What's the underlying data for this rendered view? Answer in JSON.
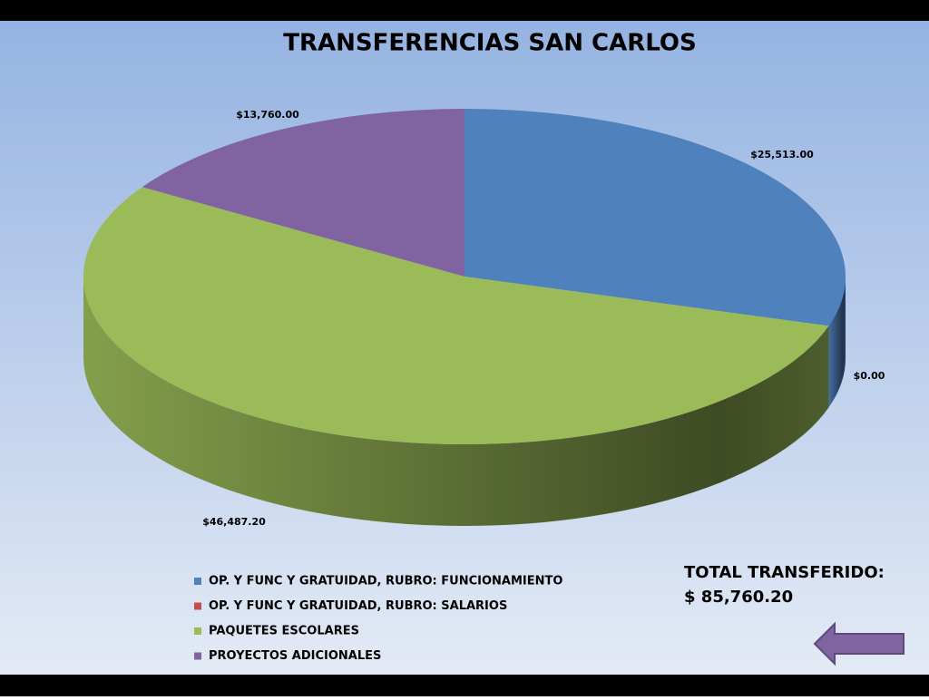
{
  "chart_data": {
    "type": "pie3d",
    "title": "TRANSFERENCIAS SAN CARLOS",
    "categories": [
      "OP. Y FUNC Y GRATUIDAD,  RUBRO: FUNCIONAMIENTO",
      "OP. Y FUNC Y GRATUIDAD,  RUBRO: SALARIOS",
      "PAQUETES ESCOLARES",
      "PROYECTOS  ADICIONALES"
    ],
    "values": [
      25513,
      0,
      46487.2,
      13760
    ],
    "value_labels": [
      "$25,513.00",
      "$0.00",
      "$46,487.20",
      "$13,760.00"
    ],
    "colors": [
      "#4f81bd",
      "#c0504d",
      "#9bbb59",
      "#8064a2"
    ],
    "total_label": "TOTAL TRANSFERIDO:",
    "total_value": "$ 85,760.20"
  }
}
